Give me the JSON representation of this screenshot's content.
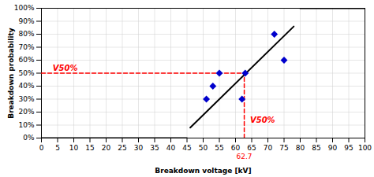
{
  "chart_data": {
    "type": "scatter",
    "xlabel": "Breakdown voltage [kV]",
    "ylabel": "Breakdown probability",
    "xlim": [
      0,
      100
    ],
    "ylim": [
      0,
      1.0
    ],
    "xticks": [
      0,
      5,
      10,
      15,
      20,
      25,
      30,
      35,
      40,
      45,
      50,
      55,
      60,
      65,
      70,
      75,
      80,
      85,
      90,
      95,
      100
    ],
    "yticks": [
      {
        "value": 0.0,
        "label": "0%"
      },
      {
        "value": 0.1,
        "label": "10%"
      },
      {
        "value": 0.2,
        "label": "20%"
      },
      {
        "value": 0.3,
        "label": "30%"
      },
      {
        "value": 0.4,
        "label": "40%"
      },
      {
        "value": 0.5,
        "label": "50%"
      },
      {
        "value": 0.6,
        "label": "60%"
      },
      {
        "value": 0.7,
        "label": "70%"
      },
      {
        "value": 0.8,
        "label": "80%"
      },
      {
        "value": 0.9,
        "label": "90%"
      },
      {
        "value": 1.0,
        "label": "100%"
      }
    ],
    "grid": true,
    "series": [
      {
        "type": "line",
        "color": "black",
        "line_style": "solid",
        "x": [
          0,
          45
        ],
        "values": [
          0.0,
          0.0
        ]
      },
      {
        "type": "line",
        "color": "black",
        "line_style": "solid",
        "x": [
          80,
          100
        ],
        "values": [
          1.0,
          1.0
        ]
      },
      {
        "type": "line",
        "color": "black",
        "line_style": "solid",
        "x": [
          46,
          78
        ],
        "values": [
          0.08,
          0.86
        ]
      },
      {
        "type": "line",
        "color": "red",
        "line_style": "dashed",
        "x": [
          0,
          62.7
        ],
        "values": [
          0.5,
          0.5
        ]
      },
      {
        "type": "line",
        "color": "red",
        "line_style": "dashed",
        "x": [
          62.7,
          62.7
        ],
        "values": [
          0.0,
          0.5
        ]
      },
      {
        "type": "scatter",
        "color": "#0000CC",
        "marker": "diamond",
        "x": [
          51,
          53,
          55,
          62,
          63,
          72,
          75
        ],
        "values": [
          0.3,
          0.4,
          0.5,
          0.3,
          0.5,
          0.8,
          0.6
        ]
      }
    ],
    "annotations": [
      {
        "text": "V50%",
        "x": 3.5,
        "y": 0.52,
        "color": "red"
      },
      {
        "text": "V50%",
        "x": 64.5,
        "y": 0.12,
        "color": "red"
      },
      {
        "text": "62.7",
        "x": 62.7,
        "color": "red"
      }
    ]
  }
}
